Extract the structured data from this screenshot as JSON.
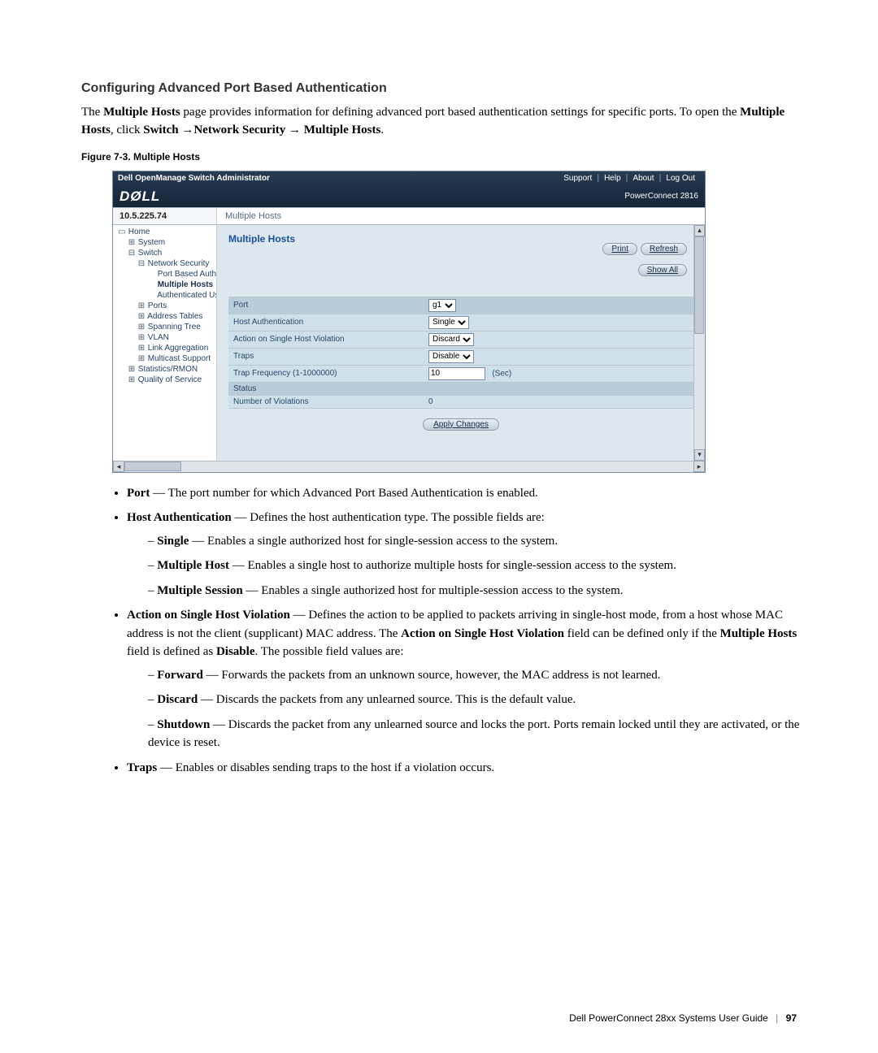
{
  "heading": "Configuring Advanced Port Based Authentication",
  "intro_html": "The <b>Multiple Hosts</b> page provides information for defining advanced port based authentication settings for specific ports. To open the <b>Multiple Hosts</b>, click <b>Switch</b> →<b>Network Security</b> → <b>Multiple Hosts</b>.",
  "figure_caption": "Figure 7-3.     Multiple Hosts",
  "screenshot": {
    "topbar": {
      "title": "Dell OpenManage Switch Administrator",
      "links": [
        "Support",
        "Help",
        "About",
        "Log Out"
      ]
    },
    "logo": "DØLL",
    "model": "PowerConnect 2816",
    "ip": "10.5.225.74",
    "breadcrumb": "Multiple Hosts",
    "tree": [
      {
        "lvl": 1,
        "ic": "▭",
        "txt": "Home",
        "link": true
      },
      {
        "lvl": 2,
        "ic": "⊞",
        "txt": "System",
        "link": true
      },
      {
        "lvl": 2,
        "ic": "⊟",
        "txt": "Switch",
        "link": true
      },
      {
        "lvl": 3,
        "ic": "⊟",
        "txt": "Network Security",
        "link": true
      },
      {
        "lvl": 4,
        "ic": "",
        "txt": "Port Based Authentic",
        "link": true
      },
      {
        "lvl": 4,
        "ic": "",
        "txt": "Multiple Hosts",
        "link": false,
        "sel": true
      },
      {
        "lvl": 4,
        "ic": "",
        "txt": "Authenticated Users",
        "link": true
      },
      {
        "lvl": 3,
        "ic": "⊞",
        "txt": "Ports",
        "link": true
      },
      {
        "lvl": 3,
        "ic": "⊞",
        "txt": "Address Tables",
        "link": true
      },
      {
        "lvl": 3,
        "ic": "⊞",
        "txt": "Spanning Tree",
        "link": true
      },
      {
        "lvl": 3,
        "ic": "⊞",
        "txt": "VLAN",
        "link": true
      },
      {
        "lvl": 3,
        "ic": "⊞",
        "txt": "Link Aggregation",
        "link": true
      },
      {
        "lvl": 3,
        "ic": "⊞",
        "txt": "Multicast Support",
        "link": true
      },
      {
        "lvl": 2,
        "ic": "⊞",
        "txt": "Statistics/RMON",
        "link": true
      },
      {
        "lvl": 2,
        "ic": "⊞",
        "txt": "Quality of Service",
        "link": true
      }
    ],
    "panel_title": "Multiple Hosts",
    "buttons": {
      "print": "Print",
      "refresh": "Refresh",
      "showall": "Show All",
      "apply": "Apply Changes"
    },
    "rows": [
      {
        "type": "hdr",
        "label": "Port",
        "control": "select",
        "value": "g1"
      },
      {
        "label": "Host Authentication",
        "control": "select",
        "value": "Single"
      },
      {
        "label": "Action on Single Host Violation",
        "control": "select",
        "value": "Discard"
      },
      {
        "label": "Traps",
        "control": "select",
        "value": "Disable"
      },
      {
        "label": "Trap Frequency (1-1000000)",
        "control": "input",
        "value": "10",
        "suffix": "(Sec)"
      },
      {
        "type": "hdr",
        "label": "Status"
      },
      {
        "label": "Number of Violations",
        "control": "text",
        "value": "0"
      }
    ]
  },
  "bullets": [
    {
      "html": "<b>Port</b> — The port number for which Advanced Port Based Authentication is enabled."
    },
    {
      "html": "<b>Host Authentication</b> — Defines the host authentication type. The possible fields are:",
      "sub": [
        {
          "html": "<b>Single</b> — Enables a single authorized host for single-session access to the system."
        },
        {
          "html": "<b>Multiple Host</b> — Enables a single host to authorize multiple hosts for single-session access to the system."
        },
        {
          "html": "<b>Multiple Session</b> — Enables a single authorized host for multiple-session access to the system."
        }
      ]
    },
    {
      "html": "<b>Action on Single Host Violation</b> — Defines the action to be applied to packets arriving in single-host mode, from a host whose MAC address is not the client (supplicant) MAC address. The <b>Action on Single Host Violation</b> field can be defined only if the <b>Multiple Hosts</b> field is defined as <b>Disable</b>. The possible field values are:",
      "sub": [
        {
          "html": "<b>Forward</b> — Forwards the packets from an unknown source, however, the MAC address is not learned."
        },
        {
          "html": "<b>Discard</b> — Discards the packets from any unlearned source. This is the default value."
        },
        {
          "html": "<b>Shutdown</b> — Discards the packet from any unlearned source and locks the port. Ports remain locked until they are activated, or the device is reset."
        }
      ]
    },
    {
      "html": "<b>Traps</b> — Enables or disables sending traps to the host if a violation occurs."
    }
  ],
  "footer": {
    "doc": "Dell PowerConnect 28xx Systems User Guide",
    "page": "97"
  }
}
